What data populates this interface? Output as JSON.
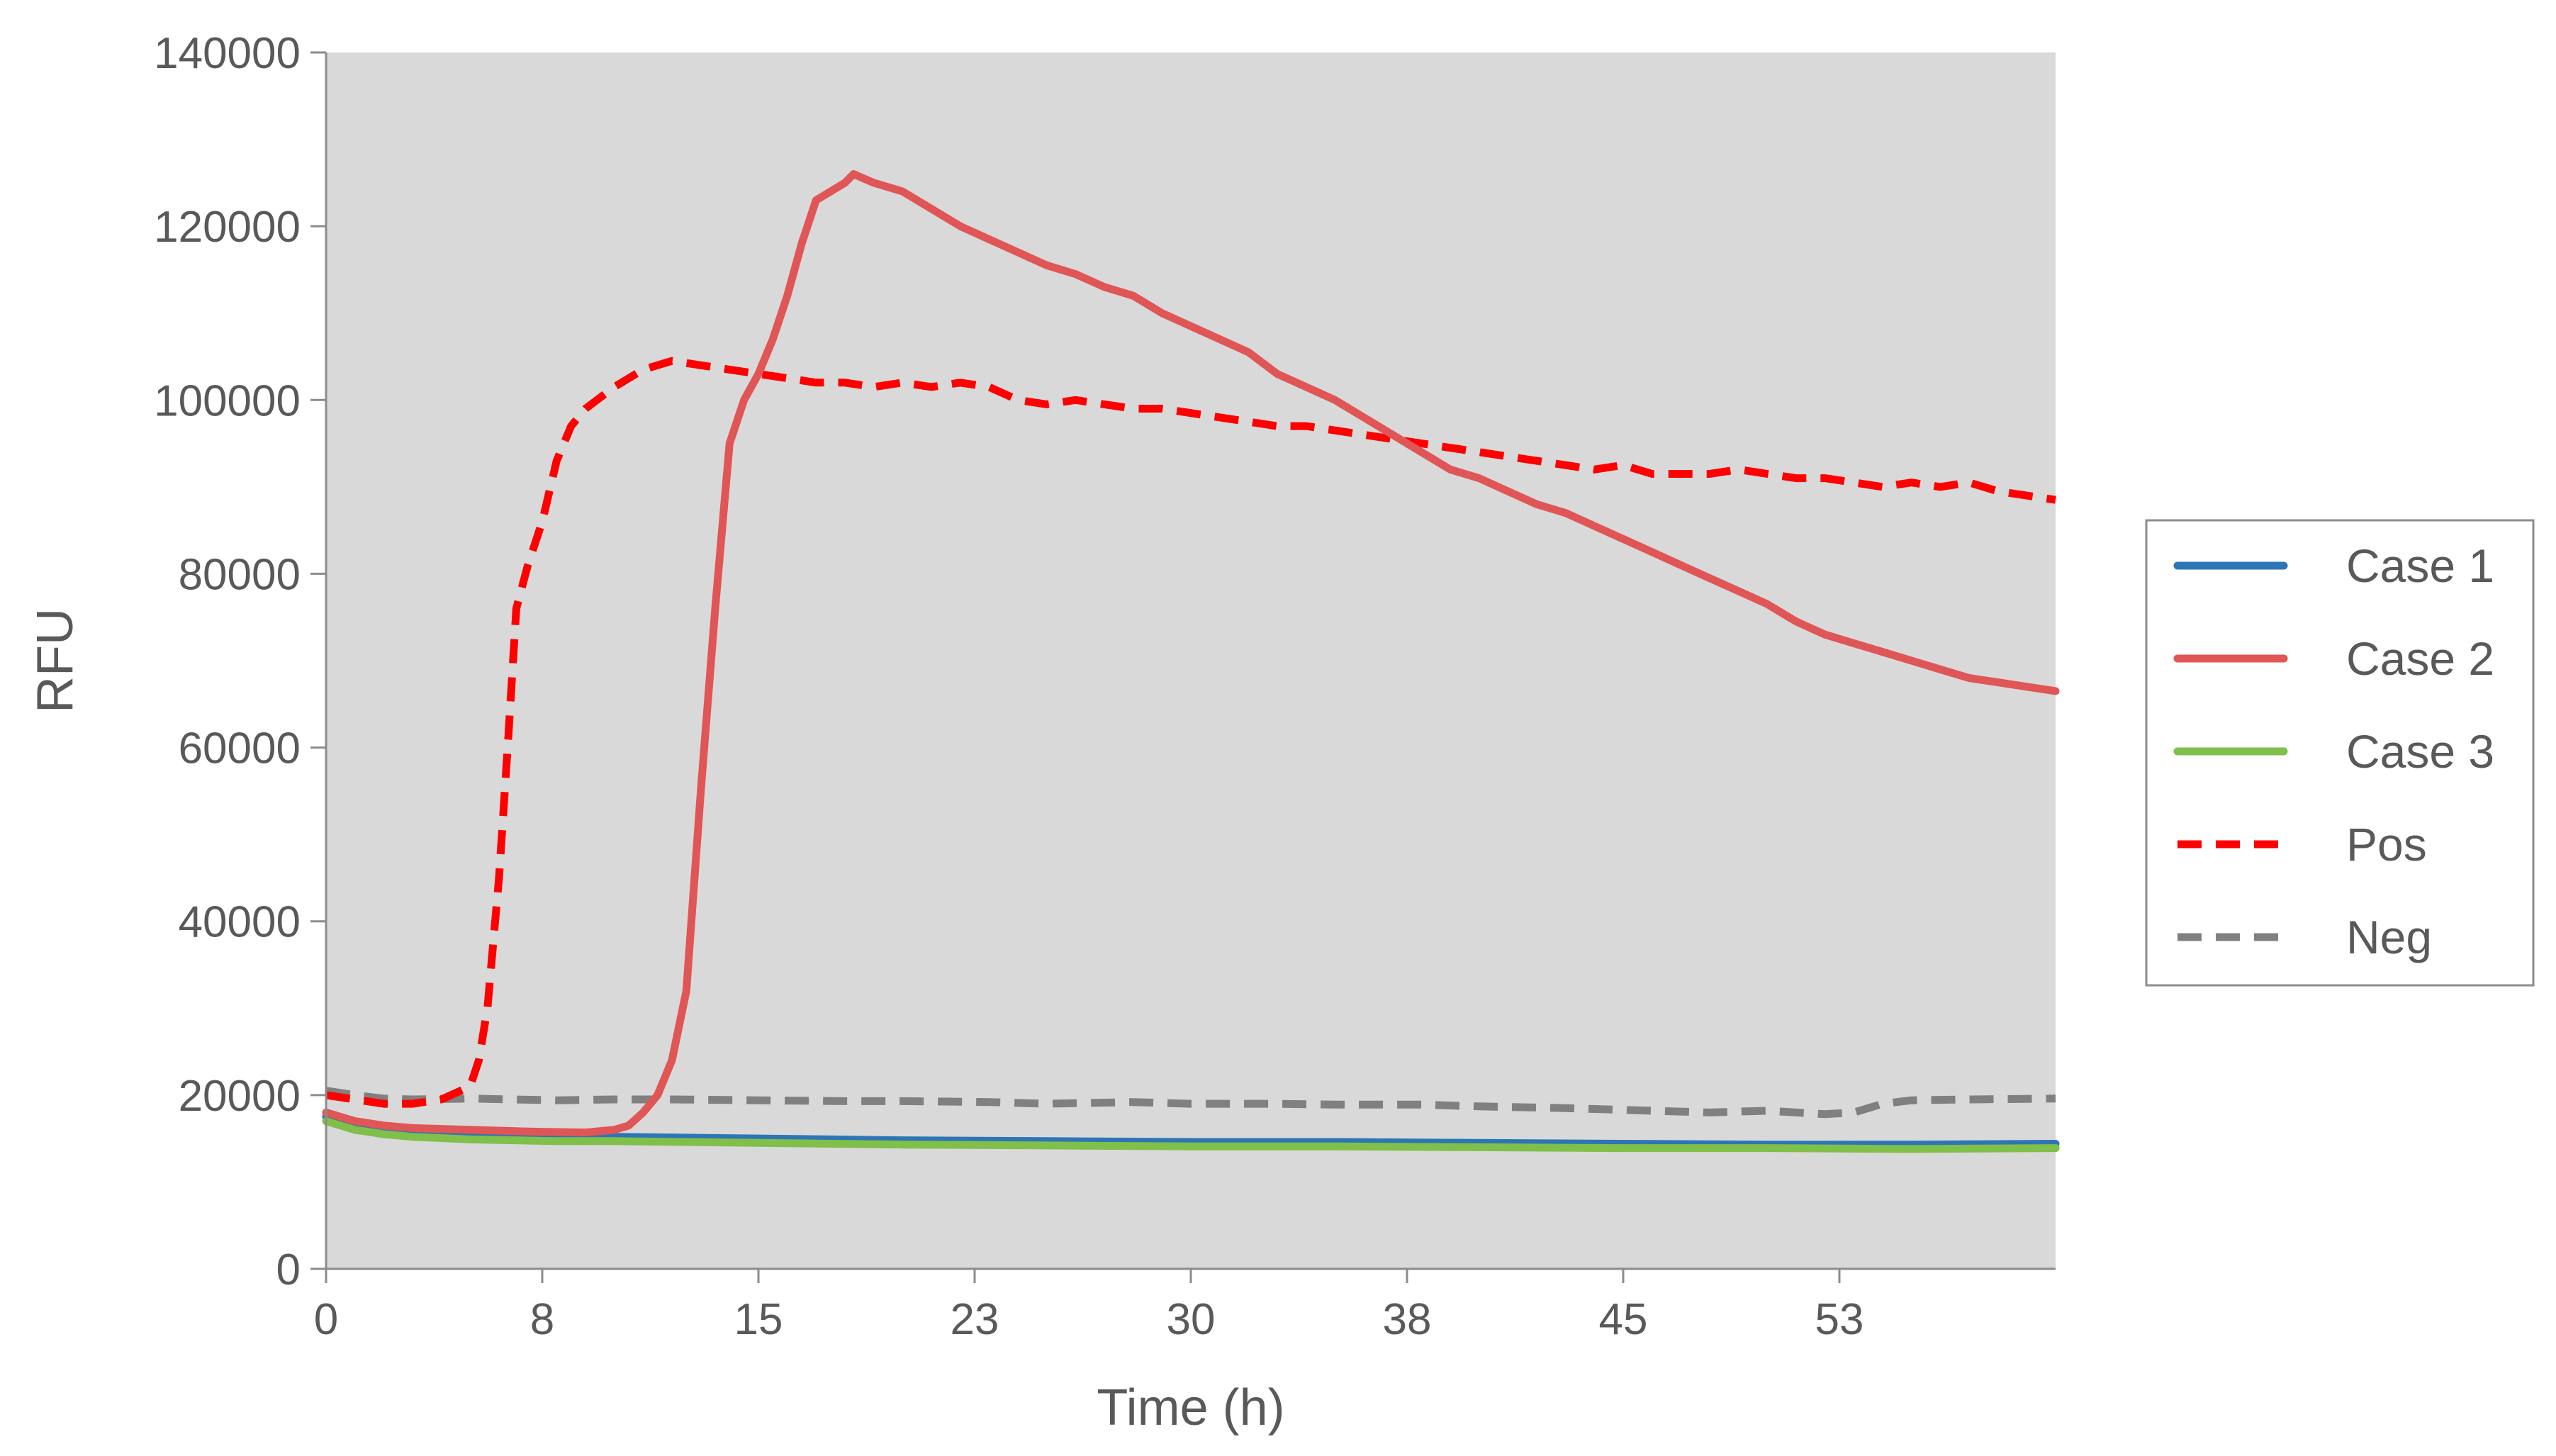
{
  "chart_data": {
    "type": "line",
    "title": "",
    "xlabel": "Time (h)",
    "ylabel": "RFU",
    "xlim": [
      0,
      60
    ],
    "ylim": [
      0,
      140000
    ],
    "x_ticks": [
      0,
      7.5,
      15,
      22.5,
      30,
      37.5,
      45,
      52.5
    ],
    "x_tick_labels": [
      "0",
      "8",
      "15",
      "23",
      "30",
      "38",
      "45",
      "53"
    ],
    "y_ticks": [
      0,
      20000,
      40000,
      60000,
      80000,
      100000,
      120000,
      140000
    ],
    "y_tick_labels": [
      "0",
      "20000",
      "40000",
      "60000",
      "80000",
      "100000",
      "120000",
      "140000"
    ],
    "legend_position": "right",
    "plot_background": "#d9d9d9",
    "series": [
      {
        "name": "Case 1",
        "color": "#2e75b6",
        "dash": "solid",
        "points": [
          [
            0,
            17500
          ],
          [
            1,
            16500
          ],
          [
            2,
            16000
          ],
          [
            3,
            15500
          ],
          [
            5,
            15200
          ],
          [
            8,
            15000
          ],
          [
            10,
            15200
          ],
          [
            15,
            15000
          ],
          [
            20,
            14800
          ],
          [
            25,
            14700
          ],
          [
            30,
            14600
          ],
          [
            35,
            14600
          ],
          [
            40,
            14500
          ],
          [
            45,
            14400
          ],
          [
            50,
            14300
          ],
          [
            55,
            14300
          ],
          [
            60,
            14400
          ]
        ]
      },
      {
        "name": "Case 2",
        "color": "#e05555",
        "dash": "solid",
        "points": [
          [
            0,
            18000
          ],
          [
            1,
            17000
          ],
          [
            2,
            16500
          ],
          [
            3,
            16200
          ],
          [
            5,
            16000
          ],
          [
            7,
            15800
          ],
          [
            9,
            15700
          ],
          [
            10,
            16000
          ],
          [
            10.5,
            16500
          ],
          [
            11,
            18000
          ],
          [
            11.5,
            20000
          ],
          [
            12,
            24000
          ],
          [
            12.5,
            32000
          ],
          [
            13,
            55000
          ],
          [
            13.5,
            76000
          ],
          [
            14,
            95000
          ],
          [
            14.5,
            100000
          ],
          [
            15,
            103000
          ],
          [
            15.5,
            107000
          ],
          [
            16,
            112000
          ],
          [
            16.5,
            118000
          ],
          [
            17,
            123000
          ],
          [
            18,
            125000
          ],
          [
            18.3,
            126000
          ],
          [
            19,
            125000
          ],
          [
            20,
            124000
          ],
          [
            21,
            122000
          ],
          [
            22,
            120000
          ],
          [
            23,
            118500
          ],
          [
            24,
            117000
          ],
          [
            25,
            115500
          ],
          [
            26,
            114500
          ],
          [
            27,
            113000
          ],
          [
            28,
            112000
          ],
          [
            29,
            110000
          ],
          [
            30,
            108500
          ],
          [
            31,
            107000
          ],
          [
            32,
            105500
          ],
          [
            33,
            103000
          ],
          [
            34,
            101500
          ],
          [
            35,
            100000
          ],
          [
            36,
            98000
          ],
          [
            37,
            96000
          ],
          [
            38,
            94000
          ],
          [
            39,
            92000
          ],
          [
            40,
            91000
          ],
          [
            41,
            89500
          ],
          [
            42,
            88000
          ],
          [
            43,
            87000
          ],
          [
            44,
            85500
          ],
          [
            45,
            84000
          ],
          [
            46,
            82500
          ],
          [
            47,
            81000
          ],
          [
            48,
            79500
          ],
          [
            49,
            78000
          ],
          [
            50,
            76500
          ],
          [
            51,
            74500
          ],
          [
            52,
            73000
          ],
          [
            53,
            72000
          ],
          [
            54,
            71000
          ],
          [
            55,
            70000
          ],
          [
            56,
            69000
          ],
          [
            57,
            68000
          ],
          [
            58,
            67500
          ],
          [
            59,
            67000
          ],
          [
            60,
            66500
          ]
        ]
      },
      {
        "name": "Case 3",
        "color": "#7fbf4a",
        "dash": "solid",
        "points": [
          [
            0,
            17000
          ],
          [
            1,
            16000
          ],
          [
            2,
            15500
          ],
          [
            3,
            15200
          ],
          [
            5,
            14900
          ],
          [
            8,
            14700
          ],
          [
            10,
            14700
          ],
          [
            15,
            14500
          ],
          [
            20,
            14300
          ],
          [
            25,
            14200
          ],
          [
            30,
            14100
          ],
          [
            35,
            14100
          ],
          [
            40,
            14000
          ],
          [
            45,
            13900
          ],
          [
            50,
            13900
          ],
          [
            55,
            13800
          ],
          [
            60,
            13900
          ]
        ]
      },
      {
        "name": "Pos",
        "color": "#ff0000",
        "dash": "dashed",
        "points": [
          [
            0,
            20000
          ],
          [
            1,
            19500
          ],
          [
            2,
            19000
          ],
          [
            3,
            19000
          ],
          [
            4,
            19500
          ],
          [
            5,
            21000
          ],
          [
            5.3,
            24000
          ],
          [
            5.6,
            30000
          ],
          [
            6,
            45000
          ],
          [
            6.3,
            60000
          ],
          [
            6.6,
            76000
          ],
          [
            7,
            81000
          ],
          [
            7.5,
            86000
          ],
          [
            8,
            93000
          ],
          [
            8.5,
            97000
          ],
          [
            9,
            99000
          ],
          [
            10,
            101500
          ],
          [
            11,
            103500
          ],
          [
            12,
            104500
          ],
          [
            13,
            104000
          ],
          [
            14,
            103500
          ],
          [
            15,
            103000
          ],
          [
            16,
            102500
          ],
          [
            17,
            102000
          ],
          [
            18,
            102000
          ],
          [
            19,
            101500
          ],
          [
            20,
            102000
          ],
          [
            21,
            101500
          ],
          [
            22,
            102000
          ],
          [
            23,
            101500
          ],
          [
            24,
            100000
          ],
          [
            25,
            99500
          ],
          [
            26,
            100000
          ],
          [
            27,
            99500
          ],
          [
            28,
            99000
          ],
          [
            29,
            99000
          ],
          [
            30,
            98500
          ],
          [
            31,
            98000
          ],
          [
            32,
            97500
          ],
          [
            33,
            97000
          ],
          [
            34,
            97000
          ],
          [
            35,
            96500
          ],
          [
            36,
            96000
          ],
          [
            37,
            95500
          ],
          [
            38,
            95000
          ],
          [
            39,
            94500
          ],
          [
            40,
            94000
          ],
          [
            41,
            93500
          ],
          [
            42,
            93000
          ],
          [
            43,
            92500
          ],
          [
            44,
            92000
          ],
          [
            45,
            92500
          ],
          [
            46,
            91500
          ],
          [
            47,
            91500
          ],
          [
            48,
            91500
          ],
          [
            49,
            92000
          ],
          [
            50,
            91500
          ],
          [
            51,
            91000
          ],
          [
            52,
            91000
          ],
          [
            53,
            90500
          ],
          [
            54,
            90000
          ],
          [
            55,
            90500
          ],
          [
            56,
            90000
          ],
          [
            57,
            90500
          ],
          [
            58,
            89500
          ],
          [
            59,
            89000
          ],
          [
            60,
            88500
          ]
        ]
      },
      {
        "name": "Neg",
        "color": "#808080",
        "dash": "dashed",
        "points": [
          [
            0,
            20500
          ],
          [
            1,
            20000
          ],
          [
            2,
            19600
          ],
          [
            3,
            19500
          ],
          [
            5,
            19600
          ],
          [
            8,
            19400
          ],
          [
            10,
            19500
          ],
          [
            12,
            19500
          ],
          [
            15,
            19400
          ],
          [
            18,
            19300
          ],
          [
            20,
            19300
          ],
          [
            23,
            19200
          ],
          [
            25,
            19000
          ],
          [
            28,
            19200
          ],
          [
            30,
            19000
          ],
          [
            33,
            19000
          ],
          [
            35,
            18900
          ],
          [
            38,
            18900
          ],
          [
            40,
            18700
          ],
          [
            43,
            18500
          ],
          [
            45,
            18300
          ],
          [
            48,
            18000
          ],
          [
            50,
            18200
          ],
          [
            52,
            17800
          ],
          [
            53,
            18000
          ],
          [
            54,
            19000
          ],
          [
            55,
            19400
          ],
          [
            57,
            19500
          ],
          [
            60,
            19600
          ]
        ]
      }
    ]
  }
}
